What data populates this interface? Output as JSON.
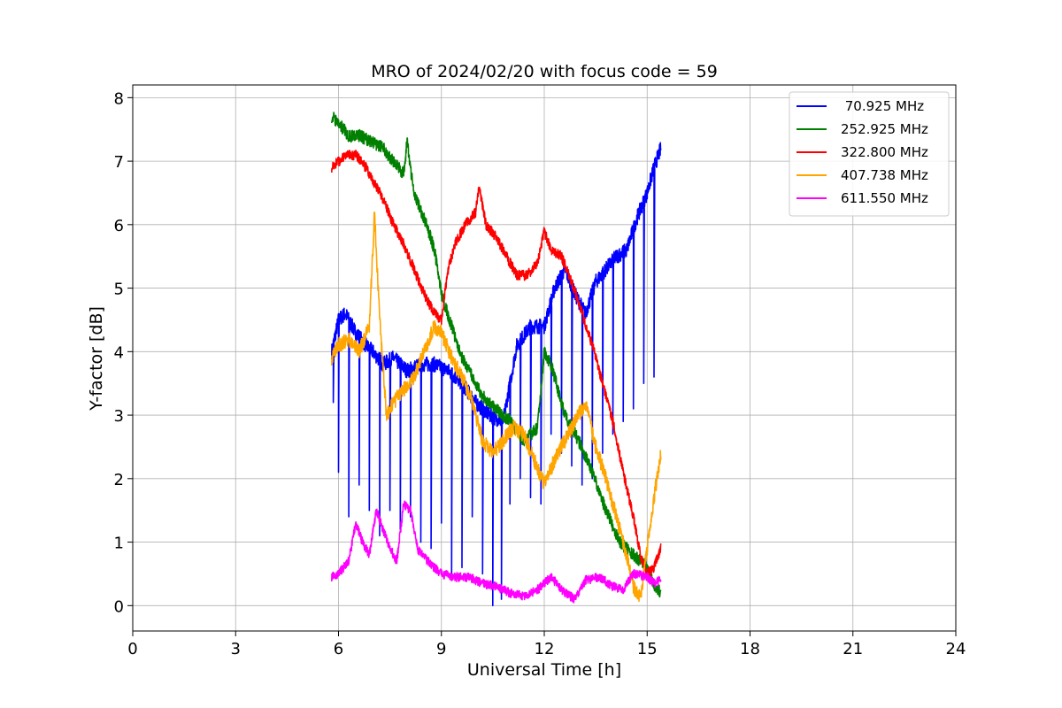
{
  "chart_data": {
    "type": "line",
    "title": "MRO of 2024/02/20 with focus code = 59",
    "xlabel": "Universal Time [h]",
    "ylabel": "Y-factor [dB]",
    "xlim": [
      0,
      24
    ],
    "ylim": [
      -0.4,
      8.2
    ],
    "xticks": [
      "0",
      "3",
      "6",
      "9",
      "12",
      "15",
      "18",
      "21",
      "24"
    ],
    "yticks": [
      "0",
      "1",
      "2",
      "3",
      "4",
      "5",
      "6",
      "7",
      "8"
    ],
    "grid": true,
    "legend_position": "top-right",
    "series": [
      {
        "name": " 70.925 MHz",
        "color": "#0000ff",
        "x": [
          5.8,
          6.0,
          6.2,
          6.5,
          6.8,
          7.0,
          7.3,
          7.6,
          8.0,
          8.4,
          8.8,
          9.2,
          9.6,
          10.0,
          10.4,
          10.8,
          11.2,
          11.6,
          12.0,
          12.3,
          12.6,
          12.9,
          13.2,
          13.5,
          13.8,
          14.1,
          14.4,
          14.7,
          15.0,
          15.2,
          15.4
        ],
        "y": [
          4.0,
          4.5,
          4.6,
          4.3,
          4.1,
          4.0,
          3.8,
          3.9,
          3.7,
          3.8,
          3.8,
          3.7,
          3.5,
          3.2,
          3.0,
          2.9,
          4.1,
          4.4,
          4.4,
          5.0,
          5.3,
          4.9,
          4.6,
          5.1,
          5.3,
          5.5,
          5.6,
          6.1,
          6.5,
          6.9,
          7.2
        ],
        "dips": [
          [
            5.85,
            3.2
          ],
          [
            6.0,
            2.1
          ],
          [
            6.3,
            1.4
          ],
          [
            6.6,
            1.9
          ],
          [
            6.9,
            1.5
          ],
          [
            7.2,
            1.1
          ],
          [
            7.5,
            1.5
          ],
          [
            7.8,
            1.2
          ],
          [
            8.1,
            1.4
          ],
          [
            8.4,
            1.0
          ],
          [
            8.7,
            0.9
          ],
          [
            9.0,
            1.3
          ],
          [
            9.3,
            0.4
          ],
          [
            9.6,
            0.6
          ],
          [
            9.9,
            1.4
          ],
          [
            10.2,
            0.5
          ],
          [
            10.5,
            0.0
          ],
          [
            10.75,
            0.1
          ],
          [
            11.0,
            1.6
          ],
          [
            11.3,
            2.0
          ],
          [
            11.6,
            1.7
          ],
          [
            11.9,
            1.6
          ],
          [
            12.2,
            2.7
          ],
          [
            12.5,
            2.4
          ],
          [
            12.8,
            2.2
          ],
          [
            13.1,
            1.9
          ],
          [
            13.4,
            2.0
          ],
          [
            13.7,
            2.4
          ],
          [
            14.0,
            2.7
          ],
          [
            14.3,
            2.9
          ],
          [
            14.6,
            3.1
          ],
          [
            14.9,
            3.5
          ],
          [
            15.2,
            3.6
          ]
        ]
      },
      {
        "name": "252.925 MHz",
        "color": "#008000",
        "x": [
          5.8,
          6.0,
          6.3,
          6.6,
          7.0,
          7.3,
          7.6,
          7.9,
          8.0,
          8.2,
          8.5,
          8.8,
          9.0,
          9.3,
          9.6,
          9.9,
          10.2,
          10.6,
          11.0,
          11.4,
          11.8,
          12.0,
          12.2,
          12.6,
          13.0,
          13.4,
          13.8,
          14.2,
          14.6,
          15.0,
          15.2,
          15.4
        ],
        "y": [
          7.7,
          7.6,
          7.4,
          7.4,
          7.3,
          7.2,
          7.0,
          6.8,
          7.3,
          6.5,
          6.1,
          5.6,
          4.9,
          4.4,
          3.9,
          3.6,
          3.3,
          3.1,
          2.9,
          2.6,
          2.8,
          4.0,
          3.8,
          3.0,
          2.6,
          2.1,
          1.5,
          1.0,
          0.8,
          0.6,
          0.3,
          0.2
        ]
      },
      {
        "name": "322.800 MHz",
        "color": "#ff0000",
        "x": [
          5.8,
          6.0,
          6.3,
          6.5,
          6.8,
          7.0,
          7.3,
          7.6,
          7.9,
          8.2,
          8.5,
          8.8,
          9.0,
          9.2,
          9.4,
          9.7,
          10.0,
          10.1,
          10.3,
          10.6,
          10.9,
          11.2,
          11.5,
          11.8,
          12.0,
          12.2,
          12.5,
          12.8,
          13.1,
          13.4,
          13.7,
          14.0,
          14.3,
          14.6,
          14.8,
          15.0,
          15.2,
          15.4
        ],
        "y": [
          6.9,
          7.0,
          7.1,
          7.1,
          6.9,
          6.7,
          6.4,
          6.0,
          5.7,
          5.3,
          4.9,
          4.6,
          4.5,
          5.3,
          5.7,
          6.0,
          6.2,
          6.6,
          6.0,
          5.8,
          5.5,
          5.2,
          5.2,
          5.4,
          5.9,
          5.6,
          5.5,
          5.1,
          4.6,
          4.1,
          3.5,
          2.9,
          2.1,
          1.4,
          0.8,
          0.5,
          0.6,
          0.9
        ]
      },
      {
        "name": "407.738 MHz",
        "color": "#ffa500",
        "x": [
          5.8,
          6.0,
          6.3,
          6.6,
          6.9,
          7.05,
          7.2,
          7.4,
          7.6,
          7.9,
          8.2,
          8.5,
          8.8,
          9.0,
          9.3,
          9.6,
          9.9,
          10.2,
          10.5,
          10.8,
          11.1,
          11.4,
          11.7,
          12.0,
          12.3,
          12.6,
          12.9,
          13.2,
          13.5,
          13.8,
          14.1,
          14.4,
          14.6,
          14.8,
          15.0,
          15.2,
          15.4
        ],
        "y": [
          3.9,
          4.1,
          4.2,
          4.0,
          4.4,
          6.2,
          4.5,
          3.0,
          3.2,
          3.4,
          3.6,
          4.0,
          4.4,
          4.3,
          3.9,
          3.6,
          3.2,
          2.6,
          2.4,
          2.6,
          2.8,
          2.7,
          2.3,
          1.9,
          2.3,
          2.6,
          2.9,
          3.2,
          2.5,
          2.0,
          1.4,
          0.8,
          0.3,
          0.1,
          0.9,
          1.7,
          2.4
        ]
      },
      {
        "name": "611.550 MHz",
        "color": "#ff00ff",
        "x": [
          5.8,
          6.0,
          6.3,
          6.5,
          6.7,
          6.9,
          7.1,
          7.3,
          7.5,
          7.7,
          7.9,
          8.1,
          8.3,
          8.6,
          9.0,
          9.4,
          9.8,
          10.2,
          10.6,
          11.0,
          11.4,
          11.8,
          12.2,
          12.6,
          12.9,
          13.2,
          13.6,
          14.0,
          14.3,
          14.6,
          15.0,
          15.2,
          15.4
        ],
        "y": [
          0.45,
          0.5,
          0.7,
          1.3,
          1.0,
          0.8,
          1.5,
          1.2,
          0.9,
          0.7,
          1.6,
          1.5,
          0.9,
          0.7,
          0.5,
          0.45,
          0.45,
          0.35,
          0.3,
          0.2,
          0.15,
          0.25,
          0.45,
          0.2,
          0.1,
          0.4,
          0.45,
          0.3,
          0.25,
          0.5,
          0.45,
          0.35,
          0.4
        ]
      }
    ]
  }
}
